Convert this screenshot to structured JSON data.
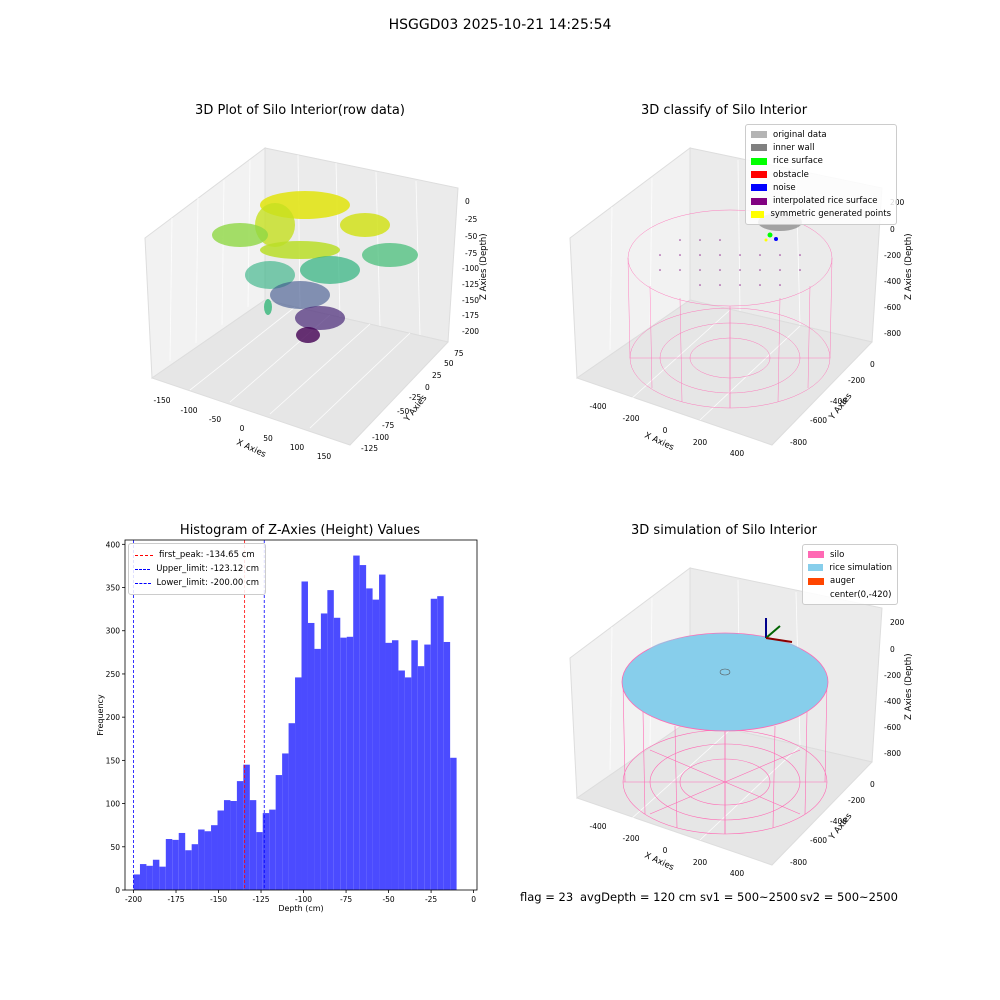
{
  "figure": {
    "title": "HSGGD03 2025-10-21 14:25:54"
  },
  "panels": {
    "tl": {
      "title": "3D Plot of Silo Interior(row data)",
      "xlabel": "X Axies",
      "ylabel": "Y Axies",
      "zlabel": "Z Axies (Depth)",
      "xticks": [
        "-150",
        "-100",
        "-50",
        "0",
        "50",
        "100",
        "150"
      ],
      "yticks": [
        "-125",
        "-100",
        "-75",
        "-50",
        "-25",
        "0",
        "25",
        "50",
        "75"
      ],
      "zticks": [
        "0",
        "-25",
        "-50",
        "-75",
        "-100",
        "-125",
        "-150",
        "-175",
        "-200"
      ]
    },
    "tr": {
      "title": "3D classify of Silo Interior",
      "xlabel": "X Axies",
      "ylabel": "Y Axies",
      "zlabel": "Z Axies (Depth)",
      "xticks": [
        "-400",
        "-200",
        "0",
        "200",
        "400"
      ],
      "yticks": [
        "-800",
        "-600",
        "-400",
        "-200",
        "0"
      ],
      "zticks": [
        "200",
        "0",
        "-200",
        "-400",
        "-600",
        "-800"
      ],
      "legend": [
        {
          "label": "original data",
          "color": "#b4b4b4"
        },
        {
          "label": "inner wall",
          "color": "#808080"
        },
        {
          "label": "rice surface",
          "color": "#00ff00"
        },
        {
          "label": "obstacle",
          "color": "#ff0000"
        },
        {
          "label": "noise",
          "color": "#0000ff"
        },
        {
          "label": "interpolated rice surface",
          "color": "#800080"
        },
        {
          "label": "symmetric generated points",
          "color": "#ffff00"
        }
      ]
    },
    "br": {
      "title": "3D simulation of Silo Interior",
      "xlabel": "X Axies",
      "ylabel": "Y Axies",
      "zlabel": "Z Axies (Depth)",
      "xticks": [
        "-400",
        "-200",
        "0",
        "200",
        "400"
      ],
      "yticks": [
        "-800",
        "-600",
        "-400",
        "-200",
        "0"
      ],
      "zticks": [
        "200",
        "0",
        "-200",
        "-400",
        "-600",
        "-800"
      ],
      "legend": [
        {
          "label": "silo",
          "color": "#ff69b4"
        },
        {
          "label": "rice simulation",
          "color": "#87ceeb"
        },
        {
          "label": "auger",
          "color": "#ff4500"
        },
        {
          "label": "center(0,-420)",
          "color": ""
        }
      ]
    }
  },
  "footer": {
    "flag": "flag = 23",
    "avg_depth": "avgDepth = 120 cm",
    "sv1": "sv1 = 500~2500",
    "sv2": "sv2 = 500~2500"
  },
  "chart_data": {
    "type": "bar",
    "title": "Histogram of Z-Axies (Height) Values",
    "xlabel": "Depth (cm)",
    "ylabel": "Frequency",
    "xlim": [
      -205,
      2
    ],
    "ylim": [
      0,
      405
    ],
    "xticks": [
      -200,
      -175,
      -150,
      -125,
      -100,
      -75,
      -50,
      -25,
      0
    ],
    "yticks": [
      0,
      50,
      100,
      150,
      200,
      250,
      300,
      350,
      400
    ],
    "bar_color": "#4b4bff",
    "bin_start": -200,
    "bin_width": 3.8,
    "values": [
      18,
      30,
      28,
      35,
      27,
      59,
      58,
      66,
      46,
      53,
      70,
      68,
      75,
      92,
      104,
      103,
      126,
      145,
      104,
      67,
      89,
      93,
      133,
      158,
      193,
      246,
      357,
      309,
      279,
      320,
      347,
      315,
      292,
      293,
      387,
      376,
      349,
      336,
      365,
      286,
      289,
      254,
      246,
      289,
      259,
      284,
      337,
      340,
      287,
      153
    ],
    "vlines": [
      {
        "label": "first_peak: -134.65 cm",
        "x": -134.65,
        "color": "#ff0000"
      },
      {
        "label": "Upper_limit: -123.12 cm",
        "x": -123.12,
        "color": "#0000ff"
      },
      {
        "label": "Lower_limit: -200.00 cm",
        "x": -200.0,
        "color": "#0000ff"
      }
    ]
  }
}
